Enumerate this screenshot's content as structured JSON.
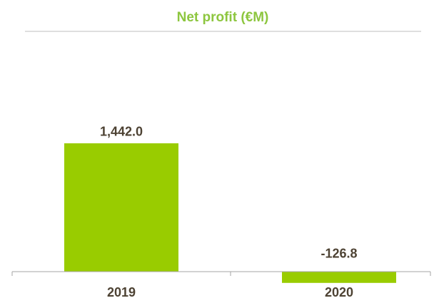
{
  "chart_data": {
    "type": "bar",
    "title": "Net profit (€M)",
    "categories": [
      "2019",
      "2020"
    ],
    "values": [
      1442.0,
      -126.8
    ],
    "value_labels": [
      "1,442.0",
      "-126.8"
    ],
    "color": "#99cc00",
    "ylim": [
      -300,
      2700
    ]
  }
}
